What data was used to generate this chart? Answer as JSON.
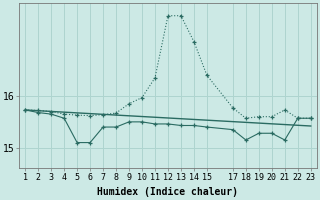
{
  "xlabel": "Humidex (Indice chaleur)",
  "background_color": "#cce9e5",
  "grid_color": "#aed4cf",
  "line_color": "#2a6b62",
  "x": [
    1,
    2,
    3,
    4,
    5,
    6,
    7,
    8,
    9,
    10,
    11,
    12,
    13,
    14,
    15,
    17,
    18,
    19,
    20,
    21,
    22,
    23
  ],
  "line1": [
    15.73,
    15.72,
    15.7,
    15.65,
    15.63,
    15.62,
    15.64,
    15.67,
    15.85,
    15.97,
    16.35,
    17.55,
    17.55,
    17.05,
    16.4,
    15.77,
    15.57,
    15.6,
    15.6,
    15.73,
    15.57,
    15.57
  ],
  "line2": [
    15.73,
    15.68,
    15.65,
    15.57,
    15.1,
    15.1,
    15.4,
    15.4,
    15.5,
    15.5,
    15.46,
    15.46,
    15.43,
    15.43,
    15.4,
    15.35,
    15.15,
    15.28,
    15.28,
    15.15,
    15.57,
    15.57
  ],
  "line3": [
    [
      1,
      23
    ],
    [
      15.73,
      15.42
    ]
  ],
  "yticks": [
    15,
    16
  ],
  "ylim": [
    14.6,
    17.8
  ],
  "xlim": [
    0.5,
    23.5
  ],
  "xticks": [
    1,
    2,
    3,
    4,
    5,
    6,
    7,
    8,
    9,
    10,
    11,
    12,
    13,
    14,
    15,
    17,
    18,
    19,
    20,
    21,
    22,
    23
  ],
  "tick_fontsize": 6,
  "xlabel_fontsize": 7
}
